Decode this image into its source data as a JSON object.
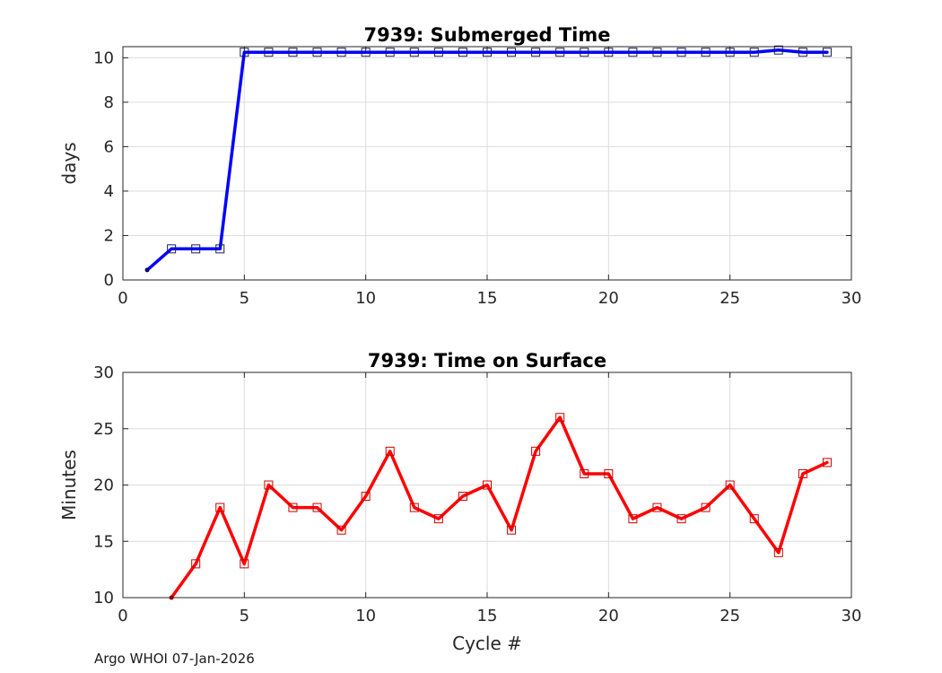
{
  "footer": "Argo WHOI 07-Jan-2026",
  "colors": {
    "top_series": "#0000ff",
    "bottom_series": "#ff0000",
    "grid": "#dcdcdc",
    "axis": "#262626"
  },
  "chart_data": [
    {
      "type": "line",
      "title": "7939: Submerged Time",
      "xlabel": "",
      "ylabel": "days",
      "xlim": [
        0,
        30
      ],
      "ylim": [
        0,
        10.5
      ],
      "xticks": [
        0,
        5,
        10,
        15,
        20,
        25,
        30
      ],
      "yticks": [
        0,
        2,
        4,
        6,
        8,
        10
      ],
      "grid": true,
      "marker": "square",
      "series": [
        {
          "color": "#0000ff",
          "x": [
            1,
            2,
            3,
            4,
            5,
            6,
            7,
            8,
            9,
            10,
            11,
            12,
            13,
            14,
            15,
            16,
            17,
            18,
            19,
            20,
            21,
            22,
            23,
            24,
            25,
            26,
            27,
            28,
            29
          ],
          "y": [
            0.45,
            1.4,
            1.4,
            1.4,
            10.25,
            10.25,
            10.25,
            10.25,
            10.25,
            10.25,
            10.25,
            10.25,
            10.25,
            10.25,
            10.25,
            10.25,
            10.25,
            10.25,
            10.25,
            10.25,
            10.25,
            10.25,
            10.25,
            10.25,
            10.25,
            10.25,
            10.35,
            10.25,
            10.25
          ]
        }
      ]
    },
    {
      "type": "line",
      "title": "7939: Time on Surface",
      "xlabel": "Cycle #",
      "ylabel": "Minutes",
      "xlim": [
        0,
        30
      ],
      "ylim": [
        10,
        30
      ],
      "xticks": [
        0,
        5,
        10,
        15,
        20,
        25,
        30
      ],
      "yticks": [
        10,
        15,
        20,
        25,
        30
      ],
      "grid": true,
      "marker": "square",
      "series": [
        {
          "color": "#ff0000",
          "x": [
            2,
            3,
            4,
            5,
            6,
            7,
            8,
            9,
            10,
            11,
            12,
            13,
            14,
            15,
            16,
            17,
            18,
            19,
            20,
            21,
            22,
            23,
            24,
            25,
            26,
            27,
            28,
            29
          ],
          "y": [
            10,
            13,
            18,
            13,
            20,
            18,
            18,
            16,
            19,
            23,
            18,
            17,
            19,
            20,
            16,
            23,
            26,
            21,
            21,
            17,
            18,
            17,
            18,
            20,
            17,
            14,
            21,
            22
          ]
        }
      ]
    }
  ]
}
